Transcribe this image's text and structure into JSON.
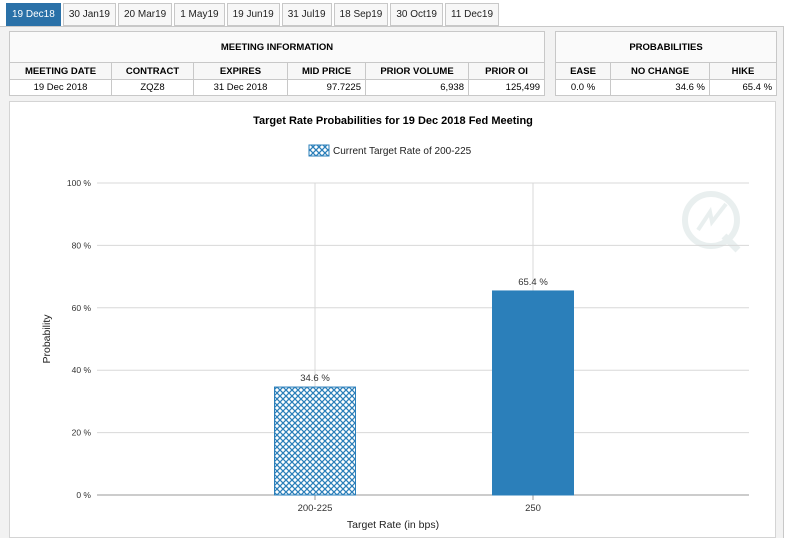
{
  "tabs": [
    {
      "label": "19 Dec18",
      "active": true
    },
    {
      "label": "30 Jan19",
      "active": false
    },
    {
      "label": "20 Mar19",
      "active": false
    },
    {
      "label": "1 May19",
      "active": false
    },
    {
      "label": "19 Jun19",
      "active": false
    },
    {
      "label": "31 Jul19",
      "active": false
    },
    {
      "label": "18 Sep19",
      "active": false
    },
    {
      "label": "30 Oct19",
      "active": false
    },
    {
      "label": "11 Dec19",
      "active": false
    }
  ],
  "meeting_info": {
    "title": "MEETING INFORMATION",
    "headers": [
      "MEETING DATE",
      "CONTRACT",
      "EXPIRES",
      "MID PRICE",
      "PRIOR VOLUME",
      "PRIOR OI"
    ],
    "row": [
      "19 Dec 2018",
      "ZQZ8",
      "31 Dec 2018",
      "97.7225",
      "6,938",
      "125,499"
    ]
  },
  "probabilities": {
    "title": "PROBABILITIES",
    "headers": [
      "EASE",
      "NO CHANGE",
      "HIKE"
    ],
    "row": [
      "0.0 %",
      "34.6 %",
      "65.4 %"
    ]
  },
  "chart_data": {
    "type": "bar",
    "title": "Target Rate Probabilities for 19 Dec 2018 Fed Meeting",
    "legend": "Current Target Rate of 200-225",
    "legend_position": "top-center",
    "categories": [
      "200-225",
      "250"
    ],
    "values": [
      34.6,
      65.4
    ],
    "value_labels": [
      "34.6 %",
      "65.4 %"
    ],
    "xlabel": "Target Rate (in bps)",
    "ylabel": "Probability",
    "ylim": [
      0,
      100
    ],
    "yticks": [
      0,
      20,
      40,
      60,
      80,
      100
    ],
    "ytick_labels": [
      "0 %",
      "20 %",
      "40 %",
      "60 %",
      "80 %",
      "100 %"
    ],
    "grid": true,
    "colors": {
      "bar": "#2b7fba",
      "hatch": "#2b7fba"
    }
  }
}
